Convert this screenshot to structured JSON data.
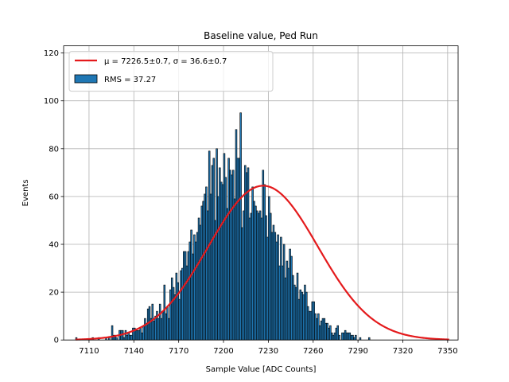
{
  "chart_data": {
    "type": "bar",
    "title": "Baseline value, Ped Run",
    "xlabel": "Sample Value [ADC Counts]",
    "ylabel": "Events",
    "xlim": [
      7093,
      7357
    ],
    "ylim": [
      0,
      123
    ],
    "xticks": [
      7110,
      7140,
      7170,
      7200,
      7230,
      7260,
      7290,
      7320,
      7350
    ],
    "yticks": [
      0,
      20,
      40,
      60,
      80,
      100,
      120
    ],
    "grid": true,
    "legend_position": "top-left",
    "colors": {
      "bar": "#1f77b4",
      "bar_edge": "#000000",
      "fit": "#e41a1c",
      "grid": "#b0b0b0"
    },
    "bin_start": 7101,
    "bin_width": 1,
    "histogram": [
      1,
      0,
      0,
      0,
      0,
      0,
      0,
      0,
      0,
      0,
      0,
      1,
      0,
      0,
      0,
      1,
      0,
      0,
      0,
      0,
      1,
      0,
      1,
      0,
      6,
      2,
      2,
      1,
      0,
      4,
      4,
      4,
      1,
      4,
      2,
      3,
      2,
      2,
      5,
      5,
      4,
      4,
      4,
      5,
      3,
      6,
      9,
      7,
      13,
      14,
      9,
      15,
      8,
      10,
      12,
      9,
      15,
      9,
      12,
      23,
      11,
      14,
      9,
      21,
      26,
      22,
      19,
      28,
      24,
      17,
      29,
      30,
      37,
      37,
      31,
      37,
      41,
      46,
      36,
      44,
      41,
      45,
      51,
      48,
      56,
      58,
      61,
      64,
      54,
      79,
      61,
      73,
      76,
      50,
      80,
      60,
      72,
      66,
      65,
      78,
      68,
      55,
      76,
      71,
      69,
      71,
      59,
      88,
      76,
      76,
      95,
      47,
      54,
      73,
      70,
      72,
      51,
      53,
      64,
      58,
      56,
      54,
      53,
      54,
      51,
      71,
      65,
      52,
      43,
      60,
      53,
      45,
      48,
      45,
      41,
      44,
      31,
      43,
      31,
      40,
      26,
      33,
      30,
      38,
      35,
      27,
      23,
      22,
      28,
      17,
      21,
      20,
      19,
      23,
      20,
      14,
      12,
      12,
      16,
      16,
      11,
      9,
      11,
      6,
      8,
      9,
      9,
      7,
      7,
      5,
      6,
      3,
      2,
      3,
      5,
      6,
      2,
      0,
      3,
      3,
      4,
      3,
      3,
      3,
      2,
      2,
      1,
      2,
      0,
      0,
      1,
      0,
      0,
      0,
      0,
      0,
      1,
      0,
      0,
      0,
      0,
      0
    ],
    "fit": {
      "mu": 7226.5,
      "sigma": 36.6,
      "amplitude": 64.5
    },
    "legend": [
      {
        "kind": "line",
        "label": "μ = 7226.5±0.7, σ = 36.6±0.7"
      },
      {
        "kind": "patch",
        "label": "RMS = 37.27"
      }
    ]
  }
}
